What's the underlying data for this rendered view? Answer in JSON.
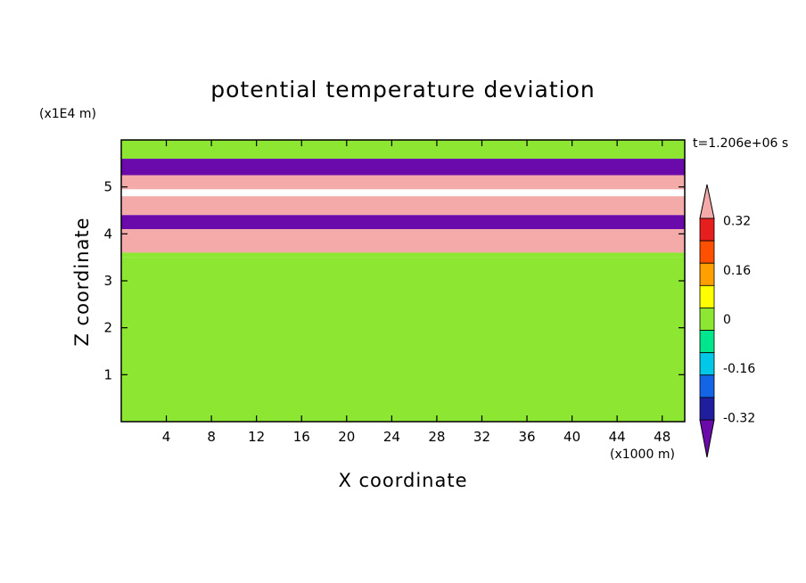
{
  "chart_data": {
    "type": "heatmap",
    "title": "potential temperature deviation",
    "xlabel": "X coordinate",
    "ylabel": "Z coordinate",
    "x_unit": "(x1000 m)",
    "y_unit": "(x1E4 m)",
    "time_label": "t=1.206e+06 s",
    "xlim": [
      0,
      50
    ],
    "ylim": [
      0,
      6
    ],
    "x_ticks": [
      "4",
      "8",
      "12",
      "16",
      "20",
      "24",
      "28",
      "32",
      "36",
      "40",
      "44",
      "48"
    ],
    "y_ticks": [
      "1",
      "2",
      "3",
      "4",
      "5"
    ],
    "colorbar": {
      "levels": [
        -0.4,
        -0.32,
        -0.24,
        -0.16,
        -0.08,
        0,
        0.08,
        0.16,
        0.24,
        0.32,
        0.4
      ],
      "tick_labels": [
        "0.32",
        "0.16",
        "0",
        "-0.16",
        "-0.32"
      ],
      "colors": [
        "#6a0aab",
        "#1e1e9e",
        "#1464e6",
        "#00c8e6",
        "#00e68c",
        "#8ce632",
        "#ffff00",
        "#ffa000",
        "#ff5000",
        "#e61e1e",
        "#f5aaaa"
      ],
      "extend": "both"
    },
    "layers": [
      {
        "z_range": [
          5.6,
          6.0
        ],
        "value": 0.05
      },
      {
        "z_range": [
          5.0,
          5.6
        ],
        "value": -0.45
      },
      {
        "z_range": [
          4.95,
          5.25
        ],
        "value": 0.45
      },
      {
        "z_range": [
          4.4,
          4.8
        ],
        "value": 0.45
      },
      {
        "z_range": [
          4.1,
          4.4
        ],
        "value": -0.45
      },
      {
        "z_range": [
          3.6,
          4.1
        ],
        "value": 0.45
      },
      {
        "z_range": [
          3.5,
          3.6
        ],
        "value": 0.0
      },
      {
        "z_range": [
          0.75,
          3.5
        ],
        "value": 0.05
      },
      {
        "z_range": [
          0.0,
          0.75
        ],
        "value": 0.0
      }
    ]
  }
}
